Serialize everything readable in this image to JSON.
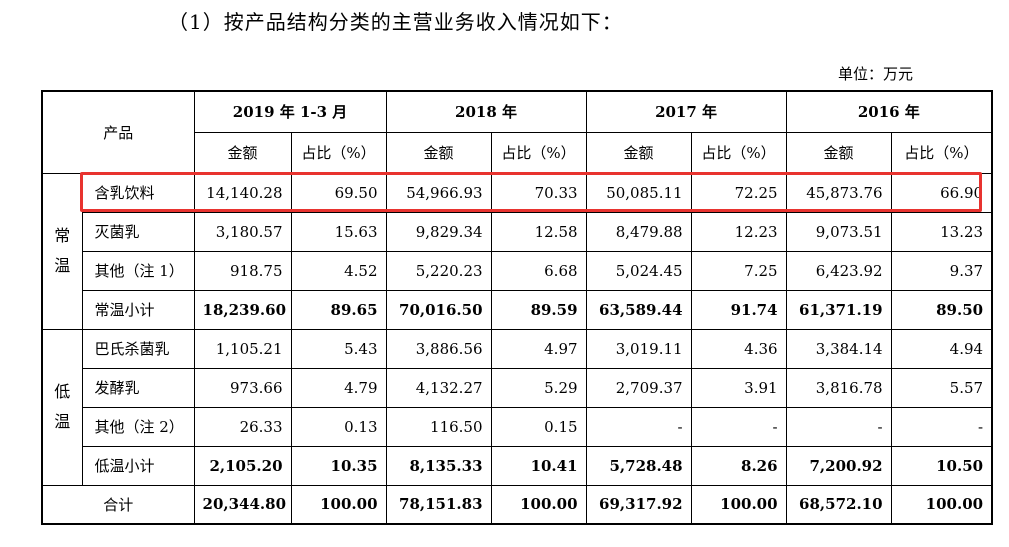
{
  "heading": "（1）按产品结构分类的主营业务收入情况如下：",
  "unit": "单位：万元",
  "table": {
    "product_header": "产品",
    "amount_header": "金额",
    "share_header": "占比（%）",
    "share_header_2016": "占比（%）",
    "years": [
      "2019 年 1-3 月",
      "2018 年",
      "2017 年",
      "2016 年"
    ],
    "group_normal": [
      "常",
      "温"
    ],
    "group_low": [
      "低",
      "温"
    ],
    "rows": [
      {
        "name": "含乳饮料",
        "values": [
          "14,140.28",
          "69.50",
          "54,966.93",
          "70.33",
          "50,085.11",
          "72.25",
          "45,873.76",
          "66.90"
        ]
      },
      {
        "name": "灭菌乳",
        "values": [
          "3,180.57",
          "15.63",
          "9,829.34",
          "12.58",
          "8,479.88",
          "12.23",
          "9,073.51",
          "13.23"
        ]
      },
      {
        "name": "其他（注 1）",
        "values": [
          "918.75",
          "4.52",
          "5,220.23",
          "6.68",
          "5,024.45",
          "7.25",
          "6,423.92",
          "9.37"
        ]
      },
      {
        "name": "常温小计",
        "values": [
          "18,239.60",
          "89.65",
          "70,016.50",
          "89.59",
          "63,589.44",
          "91.74",
          "61,371.19",
          "89.50"
        ]
      },
      {
        "name": "巴氏杀菌乳",
        "values": [
          "1,105.21",
          "5.43",
          "3,886.56",
          "4.97",
          "3,019.11",
          "4.36",
          "3,384.14",
          "4.94"
        ]
      },
      {
        "name": "发酵乳",
        "values": [
          "973.66",
          "4.79",
          "4,132.27",
          "5.29",
          "2,709.37",
          "3.91",
          "3,816.78",
          "5.57"
        ]
      },
      {
        "name": "其他（注 2）",
        "values": [
          "26.33",
          "0.13",
          "116.50",
          "0.15",
          "-",
          "-",
          "-",
          "-"
        ]
      },
      {
        "name": "低温小计",
        "values": [
          "2,105.20",
          "10.35",
          "8,135.33",
          "10.41",
          "5,728.48",
          "8.26",
          "7,200.92",
          "10.50"
        ]
      }
    ],
    "total": {
      "name": "合计",
      "values": [
        "20,344.80",
        "100.00",
        "78,151.83",
        "100.00",
        "69,317.92",
        "100.00",
        "68,572.10",
        "100.00"
      ]
    }
  },
  "highlight_color": "#e8332f"
}
